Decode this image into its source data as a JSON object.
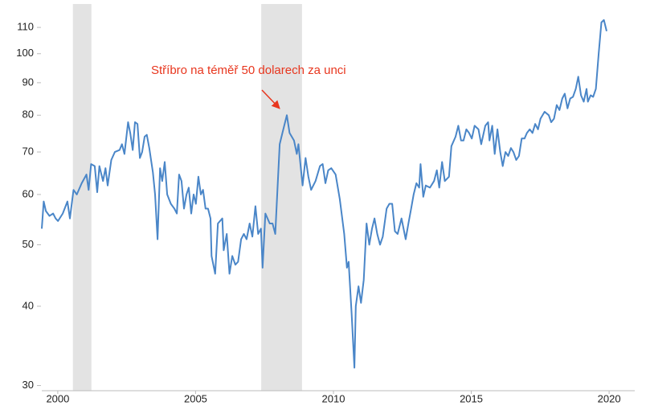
{
  "chart_data": {
    "type": "line",
    "annotation": "Stříbro na téměř 50 dolarech za unci",
    "x": [
      1999.42,
      1999.49,
      1999.57,
      1999.7,
      1999.83,
      1999.92,
      2000.01,
      2000.18,
      2000.35,
      2000.44,
      2000.57,
      2000.69,
      2000.87,
      2001.04,
      2001.12,
      2001.21,
      2001.34,
      2001.43,
      2001.51,
      2001.64,
      2001.73,
      2001.81,
      2001.94,
      2002.07,
      2002.24,
      2002.33,
      2002.42,
      2002.55,
      2002.63,
      2002.72,
      2002.8,
      2002.89,
      2002.98,
      2003.06,
      2003.15,
      2003.23,
      2003.32,
      2003.45,
      2003.53,
      2003.62,
      2003.71,
      2003.79,
      2003.88,
      2003.97,
      2004.1,
      2004.23,
      2004.32,
      2004.4,
      2004.49,
      2004.58,
      2004.67,
      2004.75,
      2004.84,
      2004.93,
      2005.01,
      2005.1,
      2005.19,
      2005.27,
      2005.36,
      2005.45,
      2005.54,
      2005.58,
      2005.71,
      2005.81,
      2005.97,
      2006.02,
      2006.13,
      2006.23,
      2006.33,
      2006.44,
      2006.54,
      2006.65,
      2006.75,
      2006.85,
      2006.96,
      2007.06,
      2007.17,
      2007.27,
      2007.37,
      2007.43,
      2007.53,
      2007.69,
      2007.79,
      2007.89,
      2008.05,
      2008.15,
      2008.31,
      2008.41,
      2008.57,
      2008.67,
      2008.73,
      2008.88,
      2008.99,
      2009.09,
      2009.19,
      2009.35,
      2009.51,
      2009.61,
      2009.71,
      2009.81,
      2009.92,
      2010.08,
      2010.23,
      2010.39,
      2010.49,
      2010.55,
      2010.66,
      2010.76,
      2010.81,
      2010.91,
      2011.0,
      2011.1,
      2011.2,
      2011.3,
      2011.4,
      2011.49,
      2011.59,
      2011.69,
      2011.79,
      2011.93,
      2012.03,
      2012.13,
      2012.23,
      2012.33,
      2012.47,
      2012.62,
      2012.72,
      2012.82,
      2012.91,
      2013.01,
      2013.11,
      2013.16,
      2013.26,
      2013.35,
      2013.5,
      2013.65,
      2013.75,
      2013.84,
      2013.94,
      2014.04,
      2014.19,
      2014.28,
      2014.43,
      2014.53,
      2014.63,
      2014.72,
      2014.82,
      2014.92,
      2015.02,
      2015.12,
      2015.26,
      2015.36,
      2015.51,
      2015.61,
      2015.66,
      2015.76,
      2015.85,
      2015.95,
      2016.05,
      2016.14,
      2016.24,
      2016.34,
      2016.44,
      2016.53,
      2016.63,
      2016.73,
      2016.83,
      2016.93,
      2017.02,
      2017.12,
      2017.22,
      2017.32,
      2017.42,
      2017.51,
      2017.66,
      2017.81,
      2017.9,
      2018.0,
      2018.1,
      2018.2,
      2018.3,
      2018.39,
      2018.49,
      2018.59,
      2018.69,
      2018.79,
      2018.88,
      2018.98,
      2019.08,
      2019.18,
      2019.23,
      2019.33,
      2019.42,
      2019.52,
      2019.62,
      2019.72,
      2019.81,
      2019.91
    ],
    "series": [
      {
        "color": "#4a86c8",
        "values": [
          53,
          58.5,
          56.5,
          55.5,
          56,
          55,
          54.5,
          56,
          58.5,
          55,
          61,
          60,
          62.5,
          64.5,
          61,
          67,
          66.5,
          60.5,
          66.5,
          63,
          66,
          62,
          68,
          70,
          70.5,
          72,
          69.5,
          78,
          75,
          70.5,
          78,
          77.5,
          68.5,
          70,
          74,
          74.5,
          71,
          65,
          60,
          51,
          66,
          63,
          67.5,
          60,
          58,
          57,
          56,
          64.5,
          63,
          57,
          60,
          61.5,
          56,
          60,
          58,
          64,
          60,
          61,
          57,
          57,
          55,
          48,
          45,
          54,
          55,
          49,
          52,
          45,
          48,
          46.5,
          47,
          51,
          52,
          51,
          54,
          51.5,
          57.5,
          52,
          53,
          46,
          56,
          54,
          54,
          52,
          72,
          75,
          80,
          75,
          73,
          69.5,
          72,
          62,
          68.5,
          64,
          61,
          63,
          66.5,
          67,
          62.5,
          65.5,
          66,
          64.5,
          59,
          52,
          46,
          47,
          39,
          32,
          40,
          43,
          40.5,
          44,
          54,
          50,
          53,
          55,
          52,
          50,
          51.5,
          57,
          58,
          58,
          52.5,
          52,
          55,
          51,
          54,
          57,
          60,
          62.5,
          61.5,
          67,
          59.5,
          62,
          61.5,
          63,
          65.5,
          61.5,
          67.5,
          63,
          64,
          71.5,
          74,
          77,
          73,
          73,
          76,
          75,
          73.5,
          77,
          76,
          72,
          77,
          78,
          73,
          77,
          69.5,
          76,
          70,
          66.5,
          70,
          69,
          71,
          70,
          68,
          69,
          73.5,
          73.5,
          75,
          76,
          75,
          77.5,
          76,
          79,
          81,
          80,
          78,
          79,
          83,
          81.5,
          85,
          86.5,
          82,
          85,
          85.5,
          88,
          92,
          86,
          84,
          88,
          84,
          86,
          85.5,
          88,
          100,
          112,
          113,
          108.5
        ]
      }
    ],
    "shaded_regions": [
      [
        2000.55,
        2001.22
      ],
      [
        2007.38,
        2008.86
      ]
    ],
    "shade_color": "#e3e3e3",
    "xlim": [
      1999.42,
      2020.93
    ],
    "xticks": [
      2000,
      2005,
      2010,
      2015,
      2020
    ],
    "ylim": [
      29.1,
      121.5
    ],
    "yticks": [
      30,
      40,
      50,
      60,
      70,
      80,
      90,
      100,
      110
    ],
    "log_y": true
  }
}
